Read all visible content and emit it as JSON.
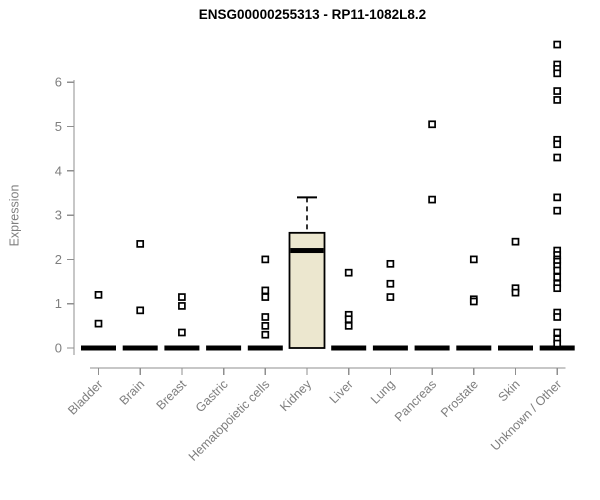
{
  "colors": {
    "axis": "#8f8f8f",
    "label": "#7e7e7e",
    "title": "#000000",
    "marker_stroke": "#000000",
    "marker_fill": "#ffffff",
    "zero_bar": "#000000",
    "box_fill": "#ece7cf",
    "box_border": "#000000",
    "median": "#000000",
    "background": "#ffffff"
  },
  "chart_data": {
    "type": "boxplot",
    "title": "ENSG00000255313 - RP11-1082L8.2",
    "xlabel": "",
    "ylabel": "Expression",
    "yticks": [
      0,
      1,
      2,
      3,
      4,
      5,
      6
    ],
    "ylim": [
      0,
      6.9
    ],
    "grid": false,
    "legend": "none",
    "marker": "open-square",
    "categories": [
      "Bladder",
      "Brain",
      "Breast",
      "Gastric",
      "Hematopoietic cells",
      "Kidney",
      "Liver",
      "Lung",
      "Pancreas",
      "Prostate",
      "Skin",
      "Unknown / Other"
    ],
    "series": [
      {
        "category": "Bladder",
        "zero_bar": true,
        "points": [
          1.2,
          0.55
        ]
      },
      {
        "category": "Brain",
        "zero_bar": true,
        "points": [
          2.35,
          0.85
        ]
      },
      {
        "category": "Breast",
        "zero_bar": true,
        "points": [
          1.15,
          0.95,
          0.35
        ]
      },
      {
        "category": "Gastric",
        "zero_bar": true,
        "points": []
      },
      {
        "category": "Hematopoietic cells",
        "zero_bar": true,
        "points": [
          2.0,
          1.3,
          1.15,
          0.7,
          0.5,
          0.3
        ]
      },
      {
        "category": "Kidney",
        "zero_bar": false,
        "points": [],
        "box": {
          "q1": 0,
          "median": 2.2,
          "q3": 2.6,
          "whisker_high": 3.4,
          "whisker_low": 0
        }
      },
      {
        "category": "Liver",
        "zero_bar": true,
        "points": [
          1.7,
          0.75,
          0.65,
          0.5
        ]
      },
      {
        "category": "Lung",
        "zero_bar": true,
        "points": [
          1.9,
          1.45,
          1.15
        ]
      },
      {
        "category": "Pancreas",
        "zero_bar": true,
        "points": [
          5.05,
          3.35
        ]
      },
      {
        "category": "Prostate",
        "zero_bar": true,
        "points": [
          2.0,
          1.1,
          1.05
        ]
      },
      {
        "category": "Skin",
        "zero_bar": true,
        "points": [
          2.4,
          1.35,
          1.25
        ]
      },
      {
        "category": "Unknown / Other",
        "zero_bar": true,
        "points": [
          6.85,
          6.4,
          6.3,
          6.2,
          5.8,
          5.6,
          4.7,
          4.6,
          4.3,
          3.4,
          3.1,
          2.2,
          2.1,
          2.0,
          1.95,
          1.85,
          1.75,
          1.6,
          1.45,
          1.35,
          0.8,
          0.7,
          0.35,
          0.2,
          0.1
        ]
      }
    ]
  }
}
